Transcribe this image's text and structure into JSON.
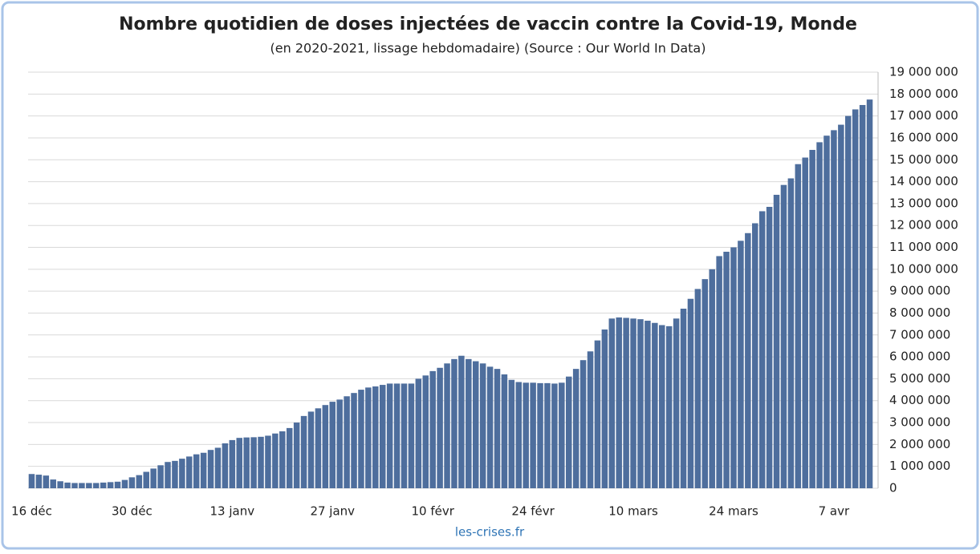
{
  "chart_data": {
    "type": "bar",
    "title": "Nombre quotidien de doses injectées de vaccin contre la Covid-19, Monde",
    "subtitle": "(en 2020-2021, lissage hebdomadaire) (Source : Our World In Data)",
    "source": "les-crises.fr",
    "color": "#4e6e9d",
    "grid": true,
    "categories": [
      "16 déc",
      null,
      null,
      null,
      null,
      null,
      null,
      null,
      null,
      null,
      null,
      null,
      null,
      null,
      "30 déc",
      null,
      null,
      null,
      null,
      null,
      null,
      null,
      null,
      null,
      null,
      null,
      null,
      null,
      "13 janv",
      null,
      null,
      null,
      null,
      null,
      null,
      null,
      null,
      null,
      null,
      null,
      null,
      null,
      "27 janv",
      null,
      null,
      null,
      null,
      null,
      null,
      null,
      null,
      null,
      null,
      null,
      null,
      null,
      "10 févr",
      null,
      null,
      null,
      null,
      null,
      null,
      null,
      null,
      null,
      null,
      null,
      null,
      null,
      "24 févr",
      null,
      null,
      null,
      null,
      null,
      null,
      null,
      null,
      null,
      null,
      null,
      null,
      null,
      "10 mars",
      null,
      null,
      null,
      null,
      null,
      null,
      null,
      null,
      null,
      null,
      null,
      null,
      null,
      "24 mars",
      null,
      null,
      null,
      null,
      null,
      null,
      null,
      null,
      null,
      null,
      null,
      null,
      null,
      "7 avr",
      null,
      null,
      null,
      null,
      null
    ],
    "values": [
      650000,
      620000,
      580000,
      400000,
      320000,
      260000,
      240000,
      240000,
      240000,
      240000,
      260000,
      280000,
      300000,
      380000,
      500000,
      600000,
      750000,
      900000,
      1050000,
      1200000,
      1250000,
      1350000,
      1450000,
      1550000,
      1620000,
      1750000,
      1850000,
      2050000,
      2200000,
      2300000,
      2320000,
      2330000,
      2350000,
      2400000,
      2500000,
      2600000,
      2750000,
      3000000,
      3300000,
      3500000,
      3650000,
      3800000,
      3950000,
      4050000,
      4200000,
      4350000,
      4500000,
      4600000,
      4650000,
      4720000,
      4780000,
      4780000,
      4780000,
      4780000,
      5000000,
      5150000,
      5350000,
      5500000,
      5700000,
      5900000,
      6050000,
      5900000,
      5800000,
      5700000,
      5550000,
      5450000,
      5200000,
      4950000,
      4850000,
      4820000,
      4820000,
      4800000,
      4800000,
      4780000,
      4820000,
      5100000,
      5450000,
      5850000,
      6250000,
      6750000,
      7250000,
      7750000,
      7800000,
      7780000,
      7750000,
      7720000,
      7650000,
      7550000,
      7450000,
      7400000,
      7750000,
      8200000,
      8650000,
      9100000,
      9550000,
      10000000,
      10600000,
      10800000,
      11000000,
      11300000,
      11650000,
      12100000,
      12650000,
      12850000,
      13400000,
      13850000,
      14150000,
      14800000,
      15100000,
      15450000,
      15800000,
      16100000,
      16350000,
      16600000,
      17000000,
      17300000,
      17500000,
      17750000
    ],
    "ylim": [
      0,
      19000000
    ],
    "yticks": [
      0,
      {
        "value": 1000000,
        "label": "1 000 000"
      },
      {
        "value": 2000000,
        "label": "2 000 000"
      },
      {
        "value": 3000000,
        "label": "3 000 000"
      },
      {
        "value": 4000000,
        "label": "4 000 000"
      },
      {
        "value": 5000000,
        "label": "5 000 000"
      },
      {
        "value": 6000000,
        "label": "6 000 000"
      },
      {
        "value": 7000000,
        "label": "7 000 000"
      },
      {
        "value": 8000000,
        "label": "8 000 000"
      },
      {
        "value": 9000000,
        "label": "9 000 000"
      },
      {
        "value": 10000000,
        "label": "10 000 000"
      },
      {
        "value": 11000000,
        "label": "11 000 000"
      },
      {
        "value": 12000000,
        "label": "12 000 000"
      },
      {
        "value": 13000000,
        "label": "13 000 000"
      },
      {
        "value": 14000000,
        "label": "14 000 000"
      },
      {
        "value": 15000000,
        "label": "15 000 000"
      },
      {
        "value": 16000000,
        "label": "16 000 000"
      },
      {
        "value": 17000000,
        "label": "17 000 000"
      },
      {
        "value": 18000000,
        "label": "18 000 000"
      },
      {
        "value": 19000000,
        "label": "19 000 000"
      }
    ]
  }
}
